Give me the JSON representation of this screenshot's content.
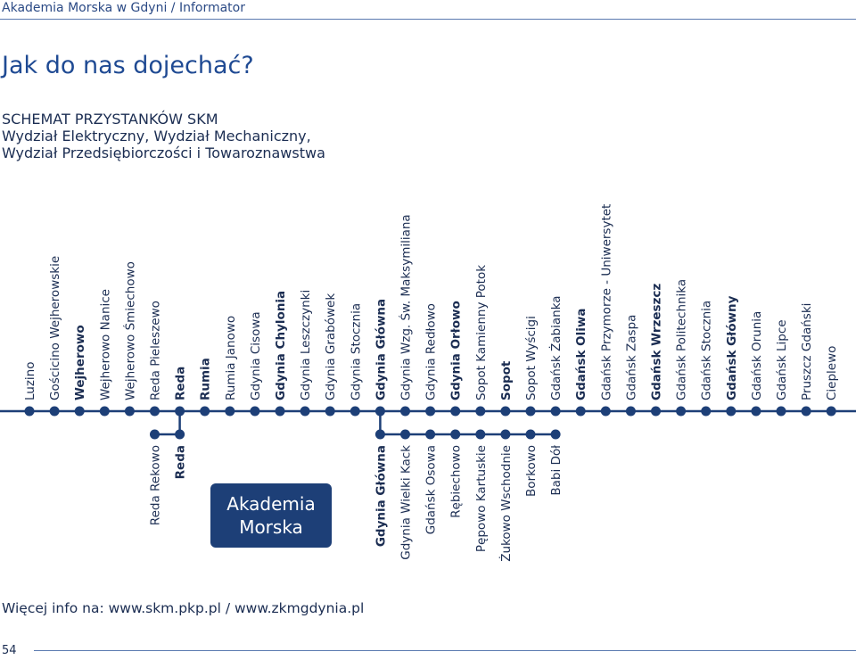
{
  "header": {
    "text": "Akademia Morska w Gdyni / Informator"
  },
  "title": "Jak do nas dojechać?",
  "subtitle": {
    "line1": "SCHEMAT PRZYSTANKÓW SKM",
    "line2": "Wydział Elektryczny, Wydział Mechaniczny,",
    "line3": "Wydział Przedsiębiorczości i Towaroznawstwa"
  },
  "colors": {
    "line": "#1d3f77",
    "stop": "#1d3f77",
    "box": "#1d3f77",
    "text": "#1b2d52"
  },
  "main_line": [
    {
      "name": "Luzino",
      "major": false
    },
    {
      "name": "Gościcino Wejherowskie",
      "major": false
    },
    {
      "name": "Wejherowo",
      "major": true
    },
    {
      "name": "Wejherowo Nanice",
      "major": false
    },
    {
      "name": "Wejherowo Śmiechowo",
      "major": false
    },
    {
      "name": "Reda Pieleszewo",
      "major": false
    },
    {
      "name": "Reda",
      "major": true
    },
    {
      "name": "Rumia",
      "major": true
    },
    {
      "name": "Rumia Janowo",
      "major": false
    },
    {
      "name": "Gdynia Cisowa",
      "major": false
    },
    {
      "name": "Gdynia Chylonia",
      "major": true
    },
    {
      "name": "Gdynia Leszczynki",
      "major": false
    },
    {
      "name": "Gdynia Grabówek",
      "major": false
    },
    {
      "name": "Gdynia Stocznia",
      "major": false
    },
    {
      "name": "Gdynia Główna",
      "major": true
    },
    {
      "name": "Gdynia Wzg. Św. Maksymiliana",
      "major": false
    },
    {
      "name": "Gdynia Redłowo",
      "major": false
    },
    {
      "name": "Gdynia Orłowo",
      "major": true
    },
    {
      "name": "Sopot Kamienny Potok",
      "major": false
    },
    {
      "name": "Sopot",
      "major": true
    },
    {
      "name": "Sopot Wyścigi",
      "major": false
    },
    {
      "name": "Gdańsk Żabianka",
      "major": false
    },
    {
      "name": "Gdańsk Oliwa",
      "major": true
    },
    {
      "name": "Gdańsk Przymorze - Uniwersytet",
      "major": false
    },
    {
      "name": "Gdańsk Zaspa",
      "major": false
    },
    {
      "name": "Gdańsk Wrzeszcz",
      "major": true
    },
    {
      "name": "Gdańsk Politechnika",
      "major": false
    },
    {
      "name": "Gdańsk Stocznia",
      "major": false
    },
    {
      "name": "Gdańsk Główny",
      "major": true
    },
    {
      "name": "Gdańsk Orunia",
      "major": false
    },
    {
      "name": "Gdańsk Lipce",
      "major": false
    },
    {
      "name": "Pruszcz Gdański",
      "major": false
    },
    {
      "name": "Cieplewo",
      "major": false
    }
  ],
  "branch_reda": [
    {
      "name": "Reda Rekowo",
      "major": false
    },
    {
      "name": "Reda",
      "major": true
    }
  ],
  "branch_gdynia": [
    {
      "name": "Gdynia Główna",
      "major": true
    },
    {
      "name": "Gdynia Wielki Kack",
      "major": false
    },
    {
      "name": "Gdańsk Osowa",
      "major": false
    },
    {
      "name": "Rębiechowo",
      "major": false
    },
    {
      "name": "Pępowo Kartuskie",
      "major": false
    },
    {
      "name": "Żukowo Wschodnie",
      "major": false
    },
    {
      "name": "Borkowo",
      "major": false
    },
    {
      "name": "Babi Dół",
      "major": false
    }
  ],
  "akademia": {
    "line1": "Akademia",
    "line2": "Morska"
  },
  "more_info": "Więcej info na: www.skm.pkp.pl / www.zkmgdynia.pl",
  "page_number": "54"
}
